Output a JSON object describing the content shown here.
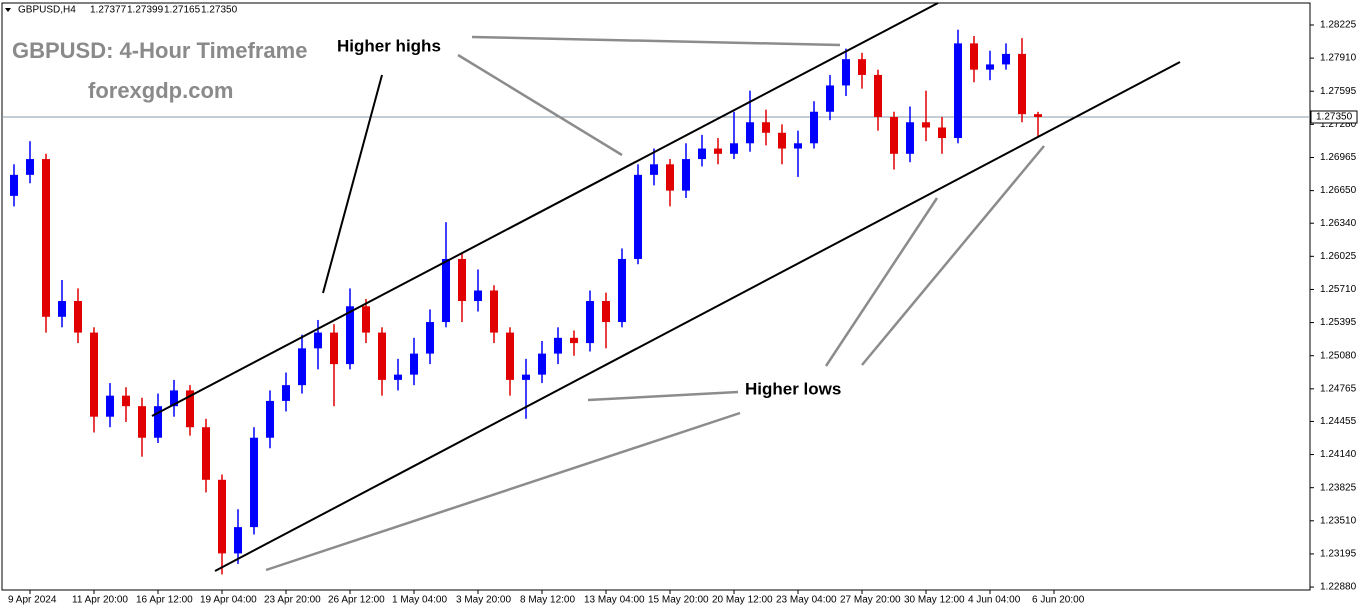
{
  "chart_data": {
    "type": "candlestick",
    "symbol": "GBPUSD,H4",
    "last_close_label": "1.27350",
    "title": "GBPUSD: 4-Hour Timeframe",
    "subtitle": "forexgdp.com",
    "annotations": [
      "Higher highs",
      "Higher lows"
    ],
    "up_color": "#0000ff",
    "down_color": "#e00000",
    "open": [
      1.266,
      1.268,
      1.2695,
      1.2545,
      1.256,
      1.253,
      1.245,
      1.247,
      1.246,
      1.243,
      1.246,
      1.2475,
      1.244,
      1.239,
      1.232,
      1.2345,
      1.243,
      1.2465,
      1.248,
      1.2515,
      1.253,
      1.25,
      1.2555,
      1.253,
      1.2485,
      1.249,
      1.251,
      1.254,
      1.26,
      1.256,
      1.257,
      1.253,
      1.2485,
      1.249,
      1.251,
      1.2525,
      1.252,
      1.256,
      1.254,
      1.26,
      1.268,
      1.269,
      1.2665,
      1.2695,
      1.2705,
      1.27,
      1.271,
      1.273,
      1.272,
      1.2705,
      1.271,
      1.274,
      1.2765,
      1.279,
      1.2775,
      1.2735,
      1.27,
      1.273,
      1.2725,
      1.2715,
      1.2805,
      1.278,
      1.2785,
      1.2795,
      1.27377
    ],
    "high": [
      1.269,
      1.2712,
      1.27,
      1.258,
      1.2572,
      1.2535,
      1.2482,
      1.2478,
      1.2468,
      1.2472,
      1.2485,
      1.248,
      1.2448,
      1.2395,
      1.2362,
      1.244,
      1.2475,
      1.2492,
      1.2528,
      1.2542,
      1.2538,
      1.2572,
      1.2562,
      1.2535,
      1.2505,
      1.2525,
      1.2552,
      1.2635,
      1.2605,
      1.259,
      1.2575,
      1.2535,
      1.2505,
      1.2522,
      1.2535,
      1.2532,
      1.257,
      1.2568,
      1.261,
      1.269,
      1.2705,
      1.2695,
      1.271,
      1.2718,
      1.2715,
      1.274,
      1.276,
      1.2742,
      1.2728,
      1.2722,
      1.275,
      1.2775,
      1.28,
      1.2796,
      1.278,
      1.274,
      1.2745,
      1.276,
      1.2735,
      1.2818,
      1.2812,
      1.2798,
      1.2805,
      1.281,
      1.27399
    ],
    "low": [
      1.265,
      1.2672,
      1.253,
      1.2535,
      1.252,
      1.2435,
      1.244,
      1.2445,
      1.2412,
      1.2425,
      1.245,
      1.2432,
      1.2378,
      1.23,
      1.231,
      1.2338,
      1.242,
      1.2455,
      1.2472,
      1.2495,
      1.246,
      1.2495,
      1.252,
      1.247,
      1.2475,
      1.248,
      1.25,
      1.2535,
      1.254,
      1.255,
      1.252,
      1.247,
      1.2448,
      1.2482,
      1.25,
      1.2508,
      1.2512,
      1.2515,
      1.2535,
      1.2595,
      1.267,
      1.265,
      1.2658,
      1.2688,
      1.269,
      1.2695,
      1.2702,
      1.2708,
      1.269,
      1.2678,
      1.2705,
      1.2732,
      1.2755,
      1.2762,
      1.2722,
      1.2685,
      1.2692,
      1.2712,
      1.27,
      1.271,
      1.2768,
      1.277,
      1.278,
      1.273,
      1.27165
    ],
    "close": [
      1.268,
      1.2695,
      1.2545,
      1.256,
      1.253,
      1.245,
      1.247,
      1.246,
      1.243,
      1.246,
      1.2475,
      1.244,
      1.239,
      1.232,
      1.2345,
      1.243,
      1.2465,
      1.248,
      1.2515,
      1.253,
      1.25,
      1.2555,
      1.253,
      1.2485,
      1.249,
      1.251,
      1.254,
      1.26,
      1.256,
      1.257,
      1.253,
      1.2485,
      1.249,
      1.251,
      1.2525,
      1.252,
      1.256,
      1.254,
      1.26,
      1.268,
      1.269,
      1.2665,
      1.2695,
      1.2705,
      1.27,
      1.271,
      1.273,
      1.272,
      1.2705,
      1.271,
      1.274,
      1.2765,
      1.279,
      1.2775,
      1.2735,
      1.27,
      1.273,
      1.2725,
      1.2715,
      1.2805,
      1.278,
      1.2785,
      1.2795,
      1.27377,
      1.2735
    ],
    "xlim": [
      -0.75,
      81
    ],
    "xticks": [
      {
        "value": 1,
        "label": "9 Apr 2024"
      },
      {
        "value": 5,
        "label": "11 Apr 20:00"
      },
      {
        "value": 9,
        "label": "16 Apr 12:00"
      },
      {
        "value": 13,
        "label": "19 Apr 04:00"
      },
      {
        "value": 17,
        "label": "23 Apr 20:00"
      },
      {
        "value": 21,
        "label": "26 Apr 12:00"
      },
      {
        "value": 25,
        "label": "1 May 04:00"
      },
      {
        "value": 29,
        "label": "3 May 20:00"
      },
      {
        "value": 33,
        "label": "8 May 12:00"
      },
      {
        "value": 37,
        "label": "13 May 04:00"
      },
      {
        "value": 41,
        "label": "15 May 20:00"
      },
      {
        "value": 45,
        "label": "20 May 12:00"
      },
      {
        "value": 49,
        "label": "23 May 04:00"
      },
      {
        "value": 53,
        "label": "27 May 20:00"
      },
      {
        "value": 57,
        "label": "30 May 12:00"
      },
      {
        "value": 61,
        "label": "4 Jun 04:00"
      },
      {
        "value": 65,
        "label": "6 Jun 20:00"
      }
    ],
    "ylim": [
      1.22852,
      1.28434
    ],
    "yticks": [
      {
        "value": 1.28225,
        "label": "1.28225"
      },
      {
        "value": 1.2791,
        "label": "1.27910"
      },
      {
        "value": 1.27595,
        "label": "1.27595"
      },
      {
        "value": 1.2728,
        "label": "1.27280"
      },
      {
        "value": 1.26965,
        "label": "1.26965"
      },
      {
        "value": 1.2665,
        "label": "1.26650"
      },
      {
        "value": 1.2634,
        "label": "1.26340"
      },
      {
        "value": 1.26025,
        "label": "1.26025"
      },
      {
        "value": 1.2571,
        "label": "1.25710"
      },
      {
        "value": 1.25395,
        "label": "1.25395"
      },
      {
        "value": 1.2508,
        "label": "1.25080"
      },
      {
        "value": 1.24765,
        "label": "1.24765"
      },
      {
        "value": 1.24455,
        "label": "1.24455"
      },
      {
        "value": 1.2414,
        "label": "1.24140"
      },
      {
        "value": 1.23825,
        "label": "1.23825"
      },
      {
        "value": 1.2351,
        "label": "1.23510"
      },
      {
        "value": 1.23195,
        "label": "1.23195"
      },
      {
        "value": 1.2288,
        "label": "1.22880"
      }
    ]
  }
}
